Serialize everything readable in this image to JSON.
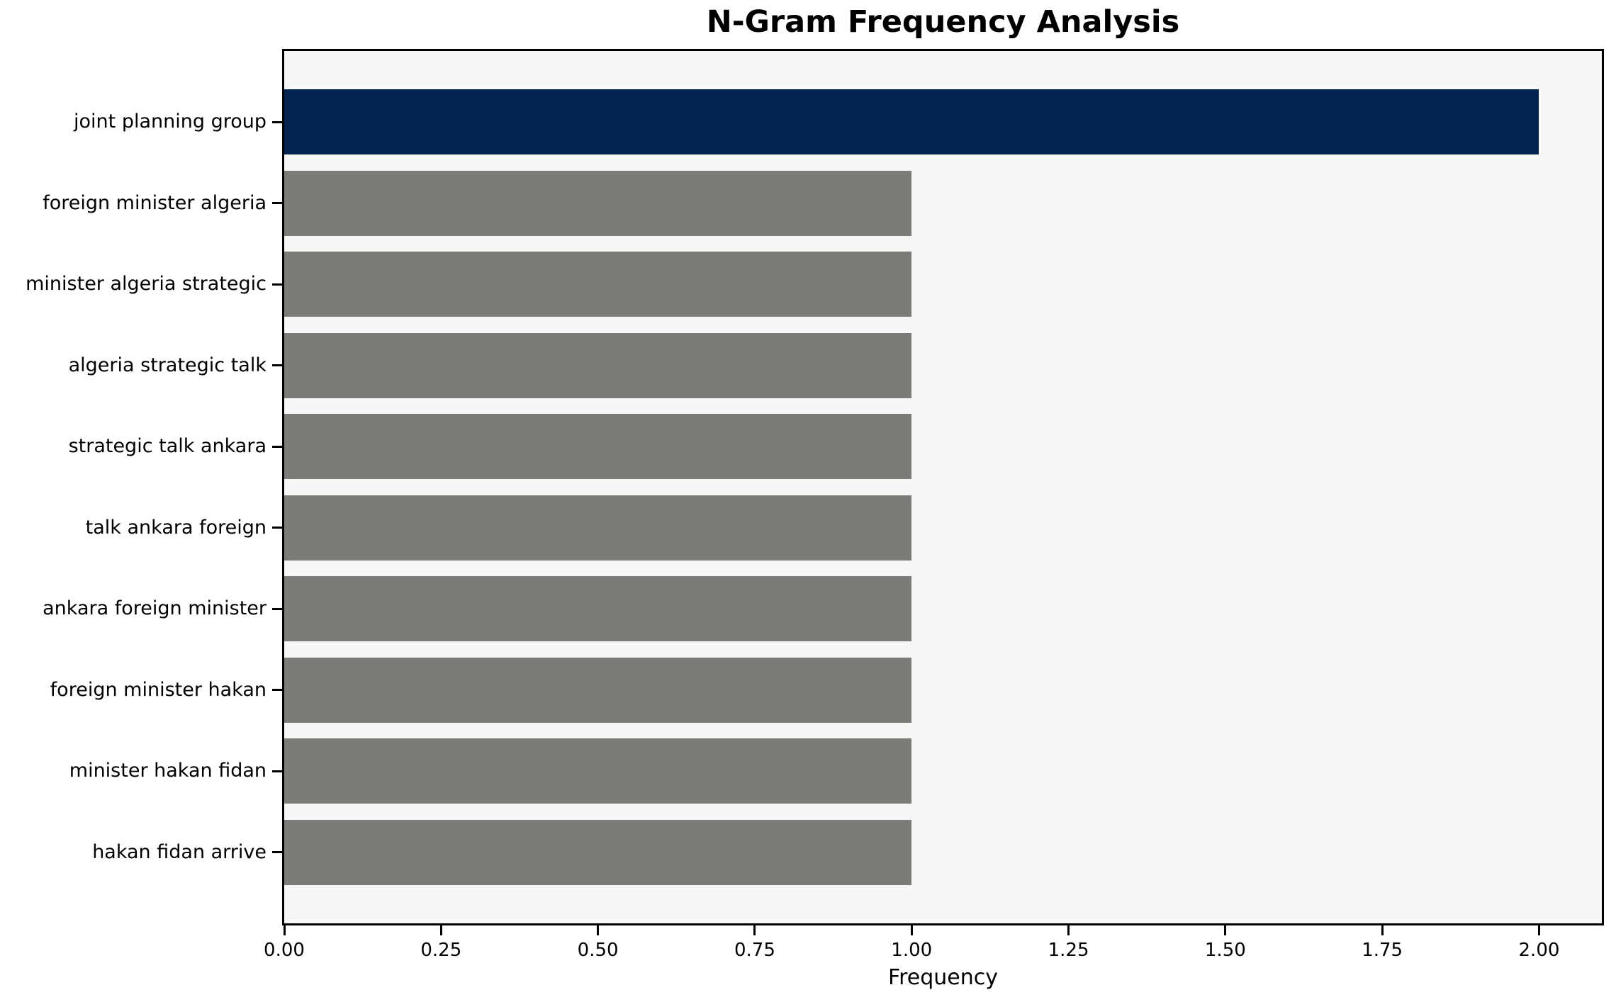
{
  "chart_data": {
    "type": "bar",
    "orientation": "horizontal",
    "title": "N-Gram Frequency Analysis",
    "xlabel": "Frequency",
    "ylabel": "",
    "categories": [
      "joint planning group",
      "foreign minister algeria",
      "minister algeria strategic",
      "algeria strategic talk",
      "strategic talk ankara",
      "talk ankara foreign",
      "ankara foreign minister",
      "foreign minister hakan",
      "minister hakan fidan",
      "hakan fidan arrive"
    ],
    "values": [
      2,
      1,
      1,
      1,
      1,
      1,
      1,
      1,
      1,
      1
    ],
    "bar_colors": [
      "#02234e",
      "#7b7b78",
      "#7b7b78",
      "#7b7b78",
      "#7b7b78",
      "#7b7b78",
      "#7b7b78",
      "#7b7b78",
      "#7b7b78",
      "#7b7b78"
    ],
    "xlim": [
      0,
      2.1
    ],
    "x_tick_values": [
      0,
      0.25,
      0.5,
      0.75,
      1.0,
      1.25,
      1.5,
      1.75,
      2.0
    ],
    "x_tick_labels": [
      "0.00",
      "0.25",
      "0.50",
      "0.75",
      "1.00",
      "1.25",
      "1.50",
      "1.75",
      "2.00"
    ],
    "grid": false,
    "legend": null,
    "colors": {
      "highlight_bar": "#02234e",
      "default_bar": "#7b7b78",
      "plot_background": "#f7f7f7",
      "figure_background": "#ffffff",
      "axis_line": "#000000",
      "text": "#000000"
    }
  }
}
